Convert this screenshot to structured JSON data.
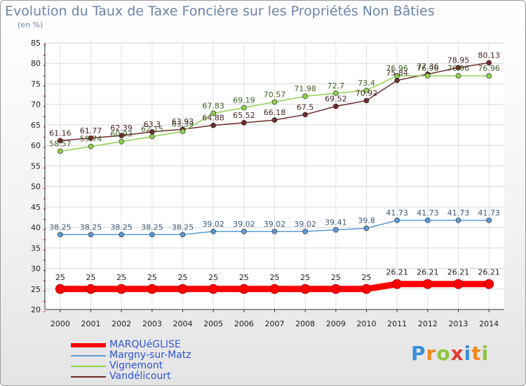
{
  "chart_data": {
    "type": "line",
    "title": "Evolution du Taux de Taxe Foncière sur les Propriétés Non Bâties",
    "ylabel": "(en %)",
    "xlabel": "",
    "x": [
      2000,
      2001,
      2002,
      2003,
      2004,
      2005,
      2006,
      2007,
      2008,
      2009,
      2010,
      2011,
      2012,
      2013,
      2014
    ],
    "ylim": [
      20,
      85
    ],
    "yticks": [
      20,
      25,
      30,
      35,
      40,
      45,
      50,
      55,
      60,
      65,
      70,
      75,
      80,
      85
    ],
    "grid": true,
    "legend_position": "bottom-left",
    "series": [
      {
        "name": "MARQUéGLISE",
        "color": "#ff0000",
        "labelColor": "#222222",
        "emphasis": true,
        "values": [
          25,
          25,
          25,
          25,
          25,
          25,
          25,
          25,
          25,
          25,
          25,
          26.21,
          26.21,
          26.21,
          26.21
        ],
        "labels": [
          "25",
          "25",
          "25",
          "25",
          "25",
          "25",
          "25",
          "25",
          "25",
          "25",
          "25",
          "26.21",
          "26.21",
          "26.21",
          "26.21"
        ]
      },
      {
        "name": "Margny-sur-Matz",
        "color": "#5b9bd5",
        "labelColor": "#3b5a7a",
        "emphasis": false,
        "values": [
          38.25,
          38.25,
          38.25,
          38.25,
          38.25,
          39.02,
          39.02,
          39.02,
          39.02,
          39.41,
          39.8,
          41.73,
          41.73,
          41.73,
          41.73
        ],
        "labels": [
          "38.25",
          "38.25",
          "38.25",
          "38.25",
          "38.25",
          "39.02",
          "39.02",
          "39.02",
          "39.02",
          "39.41",
          "39.8",
          "41.73",
          "41.73",
          "41.73",
          "41.73"
        ]
      },
      {
        "name": "Vignemont",
        "color": "#8fd14f",
        "labelColor": "#3f5f26",
        "emphasis": false,
        "values": [
          58.57,
          59.74,
          60.93,
          62.15,
          63.39,
          67.83,
          69.19,
          70.57,
          71.98,
          72.7,
          73.4,
          76.96,
          76.96,
          76.96,
          76.96
        ],
        "labels": [
          "58.57",
          "59.74",
          "60.93",
          "62.15",
          "63.39",
          "67.83",
          "69.19",
          "70.57",
          "71.98",
          "72.7",
          "73.4",
          "76.96",
          "76.96",
          "76.96",
          "76.96"
        ]
      },
      {
        "name": "Vandélicourt",
        "color": "#6e2b2b",
        "labelColor": "#4a2424",
        "emphasis": false,
        "values": [
          61.16,
          61.77,
          62.39,
          63.3,
          63.93,
          64.88,
          65.52,
          66.18,
          67.5,
          69.52,
          70.92,
          75.84,
          77.36,
          78.95,
          80.13
        ],
        "labels": [
          "61.16",
          "61.77",
          "62.39",
          "63.3",
          "63.93",
          "64.88",
          "65.52",
          "66.18",
          "67.5",
          "69.52",
          "70.92",
          "75.84",
          "77.36",
          "78.95",
          "80.13"
        ]
      }
    ]
  },
  "brand": {
    "letters": [
      "P",
      "r",
      "o",
      "x",
      "i",
      "t",
      "i"
    ],
    "colors": [
      "#3b8fd9",
      "#ec8a1e",
      "#8cc63f",
      "#e53935",
      "#3b8fd9",
      "#ec8a1e",
      "#8cc63f"
    ]
  }
}
